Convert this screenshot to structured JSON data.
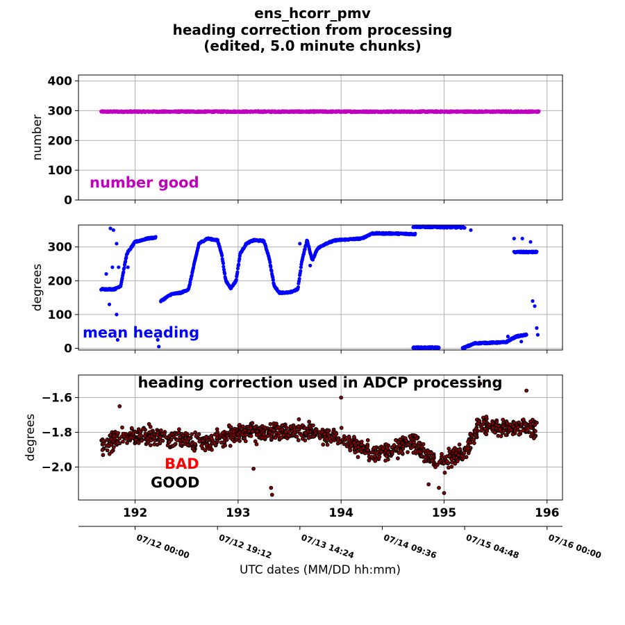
{
  "figure": {
    "title_lines": [
      "ens_hcorr_pmv",
      "heading correction from processing",
      "(edited, 5.0 minute chunks)"
    ],
    "date_axis_label": "UTC dates (MM/DD hh:mm)",
    "date_ticks": [
      {
        "x": 192.0,
        "label": "07/12 00:00"
      },
      {
        "x": 192.8,
        "label": "07/12 19:12"
      },
      {
        "x": 193.6,
        "label": "07/13 14:24"
      },
      {
        "x": 194.4,
        "label": "07/14 09:36"
      },
      {
        "x": 195.2,
        "label": "07/15 04:48"
      },
      {
        "x": 196.0,
        "label": "07/16 00:00"
      }
    ]
  },
  "colors": {
    "number_good": "#bf00bf",
    "mean_heading": "#0000ff",
    "correction_edge": "#000000",
    "correction_fill": "#8b0000",
    "bad": "#ff0000",
    "good": "#000000",
    "grid": "#b0b0b0"
  },
  "chart_data": [
    {
      "type": "scatter",
      "panel": "number",
      "ylabel": "number",
      "annotation": "number good",
      "xlim": [
        191.45,
        196.15
      ],
      "ylim": [
        0,
        420
      ],
      "yticks": [
        0,
        100,
        200,
        300,
        400
      ],
      "xticks": [
        192,
        193,
        194,
        195,
        196
      ],
      "grid": true,
      "series": [
        {
          "x_range": [
            191.67,
            195.92
          ],
          "mean": 297,
          "jitter": 2
        }
      ]
    },
    {
      "type": "scatter",
      "panel": "heading",
      "ylabel": "degrees",
      "annotation": "mean heading",
      "xlim": [
        191.45,
        196.15
      ],
      "ylim": [
        -5,
        365
      ],
      "yticks": [
        0,
        100,
        200,
        300
      ],
      "xticks": [
        192,
        193,
        194,
        195,
        196
      ],
      "grid": true,
      "segments": [
        [
          [
            191.67,
            175
          ],
          [
            191.8,
            175
          ],
          [
            191.86,
            185
          ],
          [
            191.92,
            280
          ],
          [
            192.0,
            315
          ],
          [
            192.12,
            325
          ],
          [
            192.2,
            328
          ]
        ],
        [
          [
            192.25,
            140
          ],
          [
            192.35,
            160
          ],
          [
            192.45,
            165
          ],
          [
            192.52,
            175
          ],
          [
            192.57,
            245
          ],
          [
            192.62,
            310
          ],
          [
            192.7,
            325
          ],
          [
            192.8,
            320
          ],
          [
            192.84,
            280
          ],
          [
            192.88,
            200
          ],
          [
            192.93,
            178
          ],
          [
            192.98,
            200
          ],
          [
            193.02,
            280
          ],
          [
            193.08,
            310
          ],
          [
            193.15,
            320
          ],
          [
            193.25,
            318
          ],
          [
            193.3,
            270
          ],
          [
            193.35,
            185
          ],
          [
            193.4,
            165
          ],
          [
            193.5,
            165
          ],
          [
            193.58,
            175
          ],
          [
            193.62,
            260
          ],
          [
            193.67,
            320
          ],
          [
            193.72,
            260
          ],
          [
            193.77,
            295
          ],
          [
            193.85,
            310
          ],
          [
            193.95,
            320
          ],
          [
            194.2,
            325
          ],
          [
            194.3,
            340
          ],
          [
            194.5,
            340
          ],
          [
            194.72,
            338
          ]
        ],
        [
          [
            194.7,
            360
          ],
          [
            195.2,
            358
          ]
        ],
        [
          [
            194.7,
            2
          ],
          [
            194.95,
            2
          ]
        ],
        [
          [
            195.18,
            0
          ],
          [
            195.3,
            15
          ],
          [
            195.6,
            18
          ],
          [
            195.7,
            35
          ],
          [
            195.8,
            40
          ]
        ],
        [
          [
            195.68,
            285
          ],
          [
            195.9,
            285
          ]
        ]
      ],
      "scattered": [
        [
          191.72,
          220
        ],
        [
          191.75,
          130
        ],
        [
          191.78,
          240
        ],
        [
          191.82,
          100
        ],
        [
          191.84,
          240
        ],
        [
          191.76,
          355
        ],
        [
          191.82,
          310
        ],
        [
          191.79,
          350
        ],
        [
          191.83,
          25
        ],
        [
          191.93,
          240
        ],
        [
          192.23,
          5
        ],
        [
          192.22,
          25
        ],
        [
          193.6,
          310
        ],
        [
          193.7,
          245
        ],
        [
          195.26,
          350
        ],
        [
          195.68,
          325
        ],
        [
          195.76,
          325
        ],
        [
          195.84,
          315
        ],
        [
          195.86,
          140
        ],
        [
          195.88,
          125
        ],
        [
          195.9,
          60
        ],
        [
          195.91,
          40
        ],
        [
          195.62,
          35
        ],
        [
          195.75,
          20
        ]
      ]
    },
    {
      "type": "scatter",
      "panel": "correction",
      "title": "heading correction used in ADCP processing",
      "ylabel": "degrees",
      "annotations": [
        "BAD",
        "GOOD"
      ],
      "xlim": [
        191.45,
        196.15
      ],
      "ylim": [
        -2.19,
        -1.47
      ],
      "yticks": [
        -2.0,
        -1.8,
        -1.6
      ],
      "ytick_labels": [
        "−2.0",
        "−1.8",
        "−1.6"
      ],
      "xticks": [
        192,
        193,
        194,
        195,
        196
      ],
      "xtick_labels": [
        "192",
        "193",
        "194",
        "195",
        "196"
      ],
      "grid": true,
      "trend": [
        [
          191.67,
          -1.89
        ],
        [
          191.9,
          -1.82
        ],
        [
          192.3,
          -1.83
        ],
        [
          192.7,
          -1.86
        ],
        [
          193.0,
          -1.8
        ],
        [
          193.5,
          -1.79
        ],
        [
          193.75,
          -1.8
        ],
        [
          194.0,
          -1.84
        ],
        [
          194.4,
          -1.93
        ],
        [
          194.7,
          -1.85
        ],
        [
          194.85,
          -1.95
        ],
        [
          195.0,
          -1.97
        ],
        [
          195.2,
          -1.91
        ],
        [
          195.35,
          -1.75
        ],
        [
          195.6,
          -1.77
        ],
        [
          195.9,
          -1.78
        ]
      ],
      "spread": 0.05,
      "outliers": [
        [
          193.32,
          -2.12
        ],
        [
          193.33,
          -2.16
        ],
        [
          193.15,
          -2.01
        ],
        [
          194.0,
          -1.6
        ],
        [
          195.8,
          -1.56
        ],
        [
          195.35,
          -1.52
        ],
        [
          195.0,
          -2.15
        ],
        [
          194.95,
          -2.12
        ],
        [
          191.85,
          -1.65
        ],
        [
          194.85,
          -2.1
        ]
      ]
    }
  ]
}
